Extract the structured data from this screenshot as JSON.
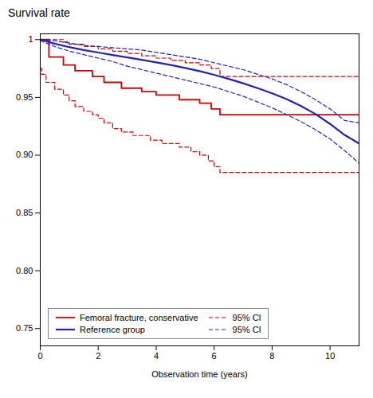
{
  "chart_data": {
    "type": "line",
    "title": "Survival rate",
    "xlabel": "Observation time (years)",
    "xlim": [
      0,
      11
    ],
    "ylim": [
      0.735,
      1.005
    ],
    "xticks": [
      0,
      2,
      4,
      6,
      8,
      10
    ],
    "yticks": [
      0.75,
      {
        "value": 0.8,
        "label": "0.80"
      },
      0.85,
      {
        "value": 0.9,
        "label": "0.90"
      },
      0.95,
      1
    ],
    "legend": "lower left",
    "series": [
      {
        "name": "95% CI",
        "color": "#cc0000",
        "type": "step",
        "line_style": "dashed",
        "x": [
          0,
          0.3,
          0.8,
          1.0,
          1.5,
          2.0,
          2.5,
          3.0,
          3.5,
          4.0,
          4.5,
          5.0,
          5.5,
          5.9,
          6.2,
          11.0
        ],
        "values": [
          1.0,
          1.0,
          0.998,
          0.996,
          0.994,
          0.992,
          0.99,
          0.988,
          0.986,
          0.984,
          0.982,
          0.98,
          0.978,
          0.975,
          0.968,
          0.968
        ]
      },
      {
        "name": "95% CI",
        "color": "#cc0000",
        "type": "step",
        "line_style": "dashed",
        "x": [
          0,
          0.05,
          0.2,
          0.5,
          0.8,
          1.0,
          1.2,
          1.5,
          1.8,
          2.0,
          2.2,
          2.5,
          2.8,
          3.2,
          3.8,
          4.2,
          4.8,
          5.2,
          5.5,
          5.8,
          6.0,
          6.2,
          11.0
        ],
        "values": [
          0.975,
          0.97,
          0.963,
          0.957,
          0.952,
          0.947,
          0.942,
          0.938,
          0.935,
          0.932,
          0.928,
          0.923,
          0.92,
          0.917,
          0.913,
          0.91,
          0.907,
          0.903,
          0.9,
          0.895,
          0.89,
          0.885,
          0.885
        ]
      },
      {
        "name": "Femoral fracture, conservative",
        "color": "#cc0000",
        "type": "step",
        "line_style": "solid",
        "x": [
          0,
          0.3,
          0.8,
          1.2,
          1.8,
          2.2,
          2.8,
          3.5,
          4.0,
          4.8,
          5.5,
          5.9,
          6.2,
          11.0
        ],
        "values": [
          1.0,
          0.985,
          0.978,
          0.973,
          0.968,
          0.963,
          0.958,
          0.955,
          0.952,
          0.948,
          0.945,
          0.94,
          0.935,
          0.935
        ]
      },
      {
        "name": "95% CI",
        "color": "#2222bb",
        "type": "line",
        "line_style": "dashed",
        "x": [
          0,
          0.5,
          1.0,
          1.5,
          2.0,
          2.5,
          3.0,
          3.5,
          4.0,
          4.5,
          5.0,
          5.5,
          6.0,
          6.5,
          7.0,
          7.5,
          8.0,
          8.5,
          9.0,
          9.5,
          10.0,
          10.5,
          11.0
        ],
        "values": [
          1.0,
          0.999,
          0.997,
          0.995,
          0.994,
          0.993,
          0.992,
          0.991,
          0.989,
          0.987,
          0.985,
          0.983,
          0.98,
          0.977,
          0.974,
          0.97,
          0.966,
          0.961,
          0.955,
          0.948,
          0.94,
          0.93,
          0.928
        ]
      },
      {
        "name": "95% CI",
        "color": "#2222bb",
        "type": "line",
        "line_style": "dashed",
        "x": [
          0,
          0.5,
          1.0,
          1.5,
          2.0,
          2.5,
          3.0,
          3.5,
          4.0,
          4.5,
          5.0,
          5.5,
          6.0,
          6.5,
          7.0,
          7.5,
          8.0,
          8.5,
          9.0,
          9.5,
          10.0,
          10.5,
          11.0
        ],
        "values": [
          0.999,
          0.994,
          0.99,
          0.987,
          0.984,
          0.981,
          0.977,
          0.974,
          0.971,
          0.968,
          0.965,
          0.962,
          0.959,
          0.955,
          0.951,
          0.946,
          0.941,
          0.935,
          0.929,
          0.922,
          0.914,
          0.904,
          0.893
        ]
      },
      {
        "name": "Reference group",
        "color": "#2222bb",
        "type": "line",
        "line_style": "solid",
        "x": [
          0,
          0.5,
          1.0,
          1.5,
          2.0,
          2.5,
          3.0,
          3.5,
          4.0,
          4.5,
          5.0,
          5.5,
          6.0,
          6.5,
          7.0,
          7.5,
          8.0,
          8.5,
          9.0,
          9.5,
          10.0,
          10.5,
          11.0
        ],
        "values": [
          1.0,
          0.9965,
          0.9935,
          0.991,
          0.9888,
          0.9867,
          0.9846,
          0.9825,
          0.9803,
          0.978,
          0.9755,
          0.9727,
          0.9695,
          0.966,
          0.9622,
          0.958,
          0.9535,
          0.9485,
          0.9425,
          0.9355,
          0.927,
          0.9175,
          0.91
        ]
      }
    ]
  }
}
